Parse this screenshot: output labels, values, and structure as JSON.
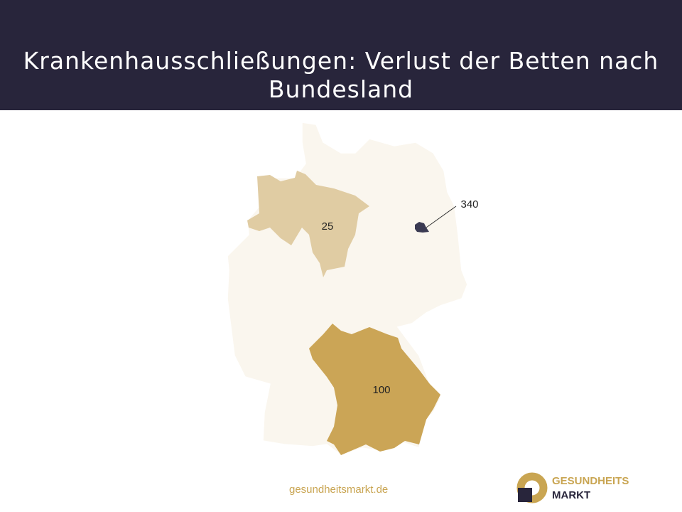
{
  "title": "Krankenhausschließungen: Verlust der Betten nach Bundesland",
  "map": {
    "regions": [
      {
        "name": "Niedersachsen",
        "value": "25",
        "color": "#e0cca3"
      },
      {
        "name": "Bayern",
        "value": "100",
        "color": "#cba556"
      },
      {
        "name": "Berlin",
        "value": "340",
        "color": "#3a3a52"
      }
    ],
    "base_color": "#faf6ee"
  },
  "source": "gesundheitsmarkt.de",
  "logo": {
    "line1": "GESUNDHEITS",
    "line2": "MARKT"
  }
}
